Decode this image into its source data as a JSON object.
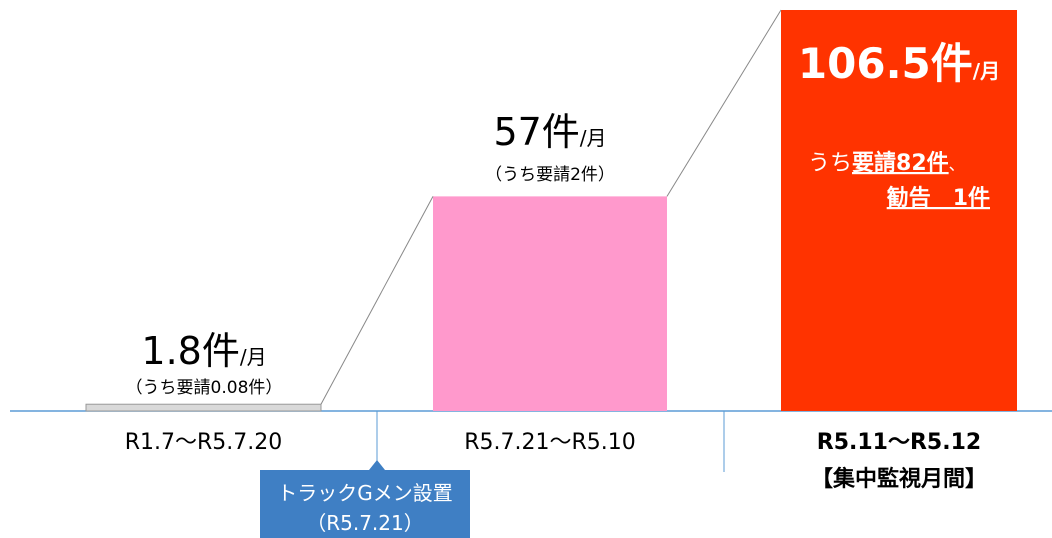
{
  "chart_data": {
    "type": "bar",
    "categories": [
      "R1.7～R5.7.20",
      "R5.7.21～R5.10",
      "R5.11～R5.12"
    ],
    "category_note": "【集中監視月間】",
    "values": [
      1.8,
      57,
      106.5
    ],
    "value_labels": [
      "1.8件",
      "57件",
      "106.5件"
    ],
    "unit": "/月",
    "colors": [
      "#d9d9d9",
      "#ff99cc",
      "#ff3300"
    ],
    "sub_labels": [
      "（うち要請0.08件）",
      "（うち要請2件）"
    ],
    "breakdown": {
      "prefix": "うち",
      "request": "要請82件",
      "sep": "、",
      "warning": "勧告　1件"
    },
    "annotation": [
      "トラックGメン設置",
      "（R5.7.21）"
    ],
    "ylim": [
      0,
      106.5
    ]
  }
}
